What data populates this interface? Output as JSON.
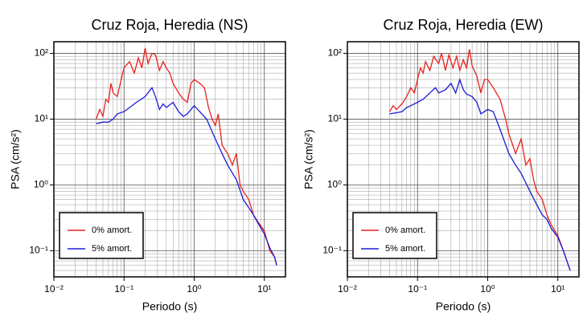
{
  "chart_data": [
    {
      "type": "line",
      "title": "Cruz Roja, Heredia (NS)",
      "x_label": "Periodo (s)",
      "y_label": "PSA (cm/s²)",
      "log_x": true,
      "log_y": true,
      "grid": true,
      "legend": "lower left",
      "xlim": [
        0.01,
        20
      ],
      "ylim": [
        0.04,
        150
      ],
      "xticks": [
        {
          "value": 0.01,
          "label": "10⁻²"
        },
        {
          "value": 0.1,
          "label": "10⁻¹"
        },
        {
          "value": 1,
          "label": "10⁰"
        },
        {
          "value": 10,
          "label": "10¹"
        }
      ],
      "yticks": [
        {
          "value": 0.1,
          "label": "10⁻¹"
        },
        {
          "value": 1,
          "label": "10⁰"
        },
        {
          "value": 10,
          "label": "10¹"
        },
        {
          "value": 100,
          "label": "10²"
        }
      ],
      "series": [
        {
          "name": "0% amort.",
          "color": "#e8211d",
          "x": [
            0.04,
            0.045,
            0.05,
            0.055,
            0.06,
            0.065,
            0.07,
            0.08,
            0.09,
            0.1,
            0.12,
            0.14,
            0.16,
            0.18,
            0.2,
            0.22,
            0.25,
            0.28,
            0.32,
            0.36,
            0.4,
            0.45,
            0.5,
            0.6,
            0.7,
            0.8,
            0.9,
            1.0,
            1.2,
            1.4,
            1.6,
            1.8,
            2.0,
            2.2,
            2.5,
            3,
            3.5,
            4,
            4.5,
            5,
            6,
            7,
            8,
            10,
            12,
            14,
            15
          ],
          "values": [
            10,
            14,
            11,
            20,
            18,
            35,
            25,
            22,
            38,
            60,
            75,
            50,
            85,
            60,
            120,
            70,
            100,
            95,
            55,
            75,
            60,
            50,
            35,
            25,
            20,
            18,
            35,
            40,
            35,
            30,
            15,
            10,
            8,
            12,
            4,
            3,
            2,
            3,
            1,
            0.8,
            0.6,
            0.35,
            0.28,
            0.2,
            0.1,
            0.08,
            0.06
          ]
        },
        {
          "name": "5% amort.",
          "color": "#1b1bd6",
          "x": [
            0.04,
            0.05,
            0.06,
            0.07,
            0.08,
            0.1,
            0.12,
            0.15,
            0.2,
            0.25,
            0.28,
            0.32,
            0.36,
            0.4,
            0.5,
            0.6,
            0.7,
            0.8,
            1.0,
            1.2,
            1.5,
            2,
            2.5,
            3,
            4,
            5,
            6,
            7,
            8,
            10,
            12,
            14,
            15
          ],
          "values": [
            8.5,
            9,
            9,
            10,
            12,
            13,
            15,
            18,
            22,
            30,
            22,
            14,
            17,
            15,
            18,
            13,
            11,
            12,
            16,
            13,
            10,
            5,
            3,
            2,
            1.2,
            0.6,
            0.45,
            0.35,
            0.27,
            0.18,
            0.11,
            0.08,
            0.06
          ]
        }
      ]
    },
    {
      "type": "line",
      "title": "Cruz Roja, Heredia (EW)",
      "x_label": "Periodo (s)",
      "y_label": "PSA (cm/s²)",
      "log_x": true,
      "log_y": true,
      "grid": true,
      "legend": "lower left",
      "xlim": [
        0.01,
        20
      ],
      "ylim": [
        0.04,
        150
      ],
      "xticks": [
        {
          "value": 0.01,
          "label": "10⁻²"
        },
        {
          "value": 0.1,
          "label": "10⁻¹"
        },
        {
          "value": 1,
          "label": "10⁰"
        },
        {
          "value": 10,
          "label": "10¹"
        }
      ],
      "yticks": [
        {
          "value": 0.1,
          "label": "10⁻¹"
        },
        {
          "value": 1,
          "label": "10⁰"
        },
        {
          "value": 10,
          "label": "10¹"
        },
        {
          "value": 100,
          "label": "10²"
        }
      ],
      "series": [
        {
          "name": "0% amort.",
          "color": "#e8211d",
          "x": [
            0.04,
            0.045,
            0.05,
            0.06,
            0.07,
            0.08,
            0.09,
            0.1,
            0.11,
            0.12,
            0.13,
            0.15,
            0.17,
            0.2,
            0.22,
            0.25,
            0.28,
            0.32,
            0.36,
            0.4,
            0.45,
            0.5,
            0.55,
            0.6,
            0.7,
            0.8,
            0.9,
            1.0,
            1.2,
            1.5,
            1.8,
            2.0,
            2.5,
            3,
            3.5,
            4,
            4.5,
            5,
            6,
            7,
            8,
            10,
            12,
            15
          ],
          "values": [
            13,
            16,
            14,
            17,
            22,
            30,
            25,
            40,
            60,
            50,
            75,
            55,
            90,
            70,
            100,
            55,
            95,
            60,
            90,
            55,
            80,
            60,
            115,
            65,
            45,
            25,
            40,
            40,
            30,
            20,
            10,
            6,
            3,
            5,
            2,
            2.5,
            1.2,
            0.8,
            0.6,
            0.35,
            0.25,
            0.17,
            0.1,
            0.05
          ]
        },
        {
          "name": "5% amort.",
          "color": "#1b1bd6",
          "x": [
            0.04,
            0.05,
            0.06,
            0.07,
            0.08,
            0.1,
            0.12,
            0.15,
            0.18,
            0.2,
            0.25,
            0.3,
            0.35,
            0.4,
            0.45,
            0.5,
            0.6,
            0.7,
            0.8,
            1.0,
            1.2,
            1.5,
            2,
            2.5,
            3,
            4,
            5,
            6,
            7,
            8,
            10,
            12,
            15
          ],
          "values": [
            12,
            12.5,
            13,
            15,
            16,
            18,
            20,
            25,
            30,
            25,
            28,
            35,
            25,
            40,
            28,
            24,
            22,
            18,
            12,
            14,
            13,
            7,
            3,
            2,
            1.5,
            0.8,
            0.5,
            0.35,
            0.3,
            0.22,
            0.16,
            0.1,
            0.05
          ]
        }
      ]
    }
  ]
}
